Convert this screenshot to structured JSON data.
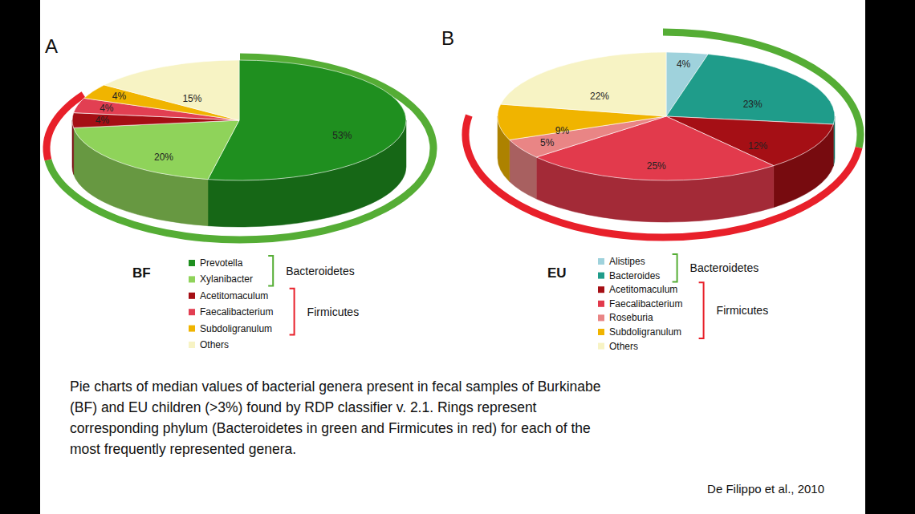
{
  "chart_data": [
    {
      "type": "pie",
      "title": "A",
      "subtitle": "BF",
      "categories": [
        "Prevotella",
        "Xylanibacter",
        "Acetitomaculum",
        "Faecalibacterium",
        "Subdoligranulum",
        "Others"
      ],
      "values": [
        53,
        20,
        4,
        4,
        4,
        15
      ],
      "value_labels": [
        "53%",
        "20%",
        "4%",
        "4%",
        "4%",
        "15%"
      ],
      "colors": [
        "#1f8f1f",
        "#8fd35a",
        "#a50f15",
        "#e23f52",
        "#f0b400",
        "#f7f3c4"
      ],
      "data_labels": true,
      "legend": "bottom",
      "groups": [
        {
          "name": "Bacteroidetes",
          "color": "#55ad35",
          "categories": [
            "Prevotella",
            "Xylanibacter"
          ]
        },
        {
          "name": "Firmicutes",
          "color": "#e8202a",
          "categories": [
            "Acetitomaculum",
            "Faecalibacterium",
            "Subdoligranulum"
          ]
        }
      ]
    },
    {
      "type": "pie",
      "title": "B",
      "subtitle": "EU",
      "categories": [
        "Alistipes",
        "Bacteroides",
        "Acetitomaculum",
        "Faecalibacterium",
        "Roseburia",
        "Subdoligranulum",
        "Others"
      ],
      "values": [
        4,
        23,
        12,
        25,
        5,
        9,
        22
      ],
      "value_labels": [
        "4%",
        "23%",
        "12%",
        "25%",
        "5%",
        "9%",
        "22%"
      ],
      "colors": [
        "#9fd2dc",
        "#1f9c8a",
        "#a50f15",
        "#e23a4c",
        "#e98585",
        "#f0b400",
        "#f7f3c4"
      ],
      "data_labels": true,
      "legend": "bottom",
      "groups": [
        {
          "name": "Bacteroidetes",
          "color": "#55ad35",
          "categories": [
            "Alistipes",
            "Bacteroides"
          ]
        },
        {
          "name": "Firmicutes",
          "color": "#e8202a",
          "categories": [
            "Acetitomaculum",
            "Faecalibacterium",
            "Roseburia",
            "Subdoligranulum"
          ]
        }
      ]
    }
  ],
  "caption": [
    "Pie charts of median values of bacterial genera present in fecal samples of Burkinabe",
    "(BF) and EU children (>3%) found by RDP classifier v. 2.1. Rings represent",
    "corresponding phylum (Bacteroidetes in green and Firmicutes in red) for each of the",
    "most frequently represented genera."
  ],
  "source": "De Filippo et al., 2010"
}
